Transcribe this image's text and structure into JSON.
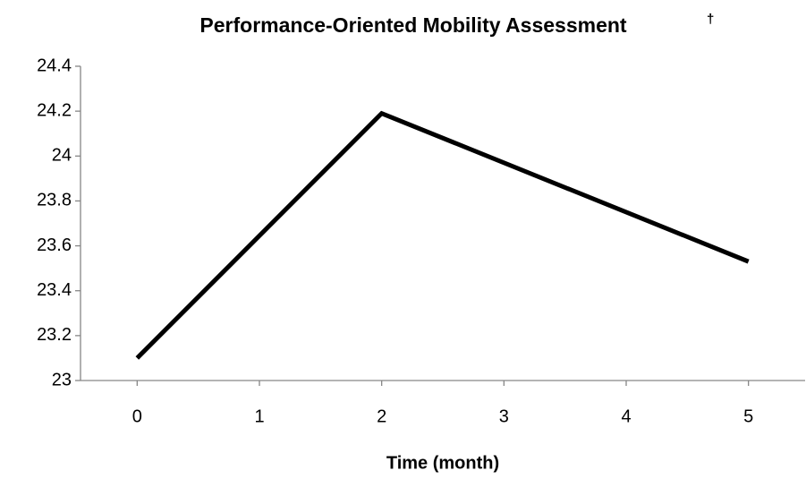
{
  "chart_data": {
    "type": "line",
    "title": "Performance-Oriented Mobility Assessment",
    "title_note": "†",
    "x_label": "Time (month)",
    "x": [
      0,
      2,
      5
    ],
    "series": [
      {
        "name": null,
        "color": "#000000",
        "values": [
          23.1,
          24.19,
          23.53
        ]
      }
    ],
    "xlim": [
      -0.5,
      5.5
    ],
    "xticks": [
      0,
      1,
      2,
      3,
      4,
      5
    ],
    "ylim": [
      23,
      24.4
    ],
    "yticks": [
      23,
      23.2,
      23.4,
      23.6,
      23.8,
      24,
      24.2,
      24.4
    ],
    "grid": false
  }
}
